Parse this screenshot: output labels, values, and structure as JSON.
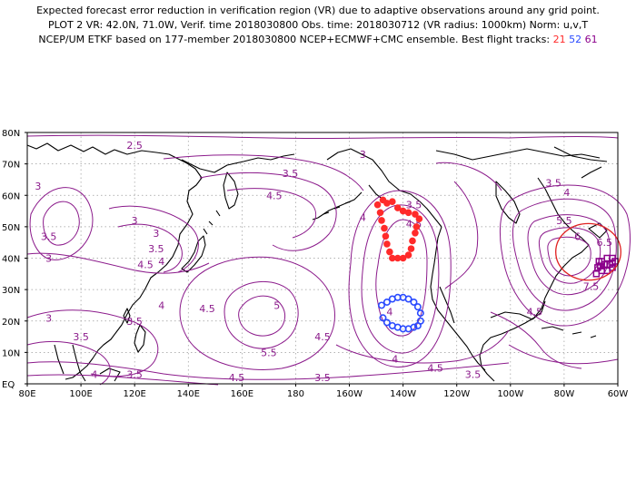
{
  "header": {
    "line1": "Expected forecast error reduction in verification region (VR) due to adaptive observations around any grid point.",
    "line2": "PLOT 2 VR: 42.0N, 71.0W, Verif. time 2018030800 Obs. time: 2018030712 (VR radius: 1000km) Norm: u,v,T",
    "line3": "NCEP/UM ETKF based on 177-member 2018030800 NCEP+ECMWF+CMC ensemble. Best flight tracks:",
    "tracks": [
      {
        "label": "21",
        "color": "#ff2a2a"
      },
      {
        "label": "52",
        "color": "#2a4bff"
      },
      {
        "label": "61",
        "color": "#8b008b"
      }
    ]
  },
  "map": {
    "lat_labels": [
      "80N",
      "70N",
      "60N",
      "50N",
      "40N",
      "30N",
      "20N",
      "10N",
      "EQ"
    ],
    "lon_labels": [
      "80E",
      "100E",
      "120E",
      "140E",
      "160E",
      "180",
      "160W",
      "140W",
      "120W",
      "100W",
      "80W",
      "60W"
    ],
    "contour_color": "#8b1a8b",
    "grid": true,
    "contour_labels": [
      {
        "text": "2.5",
        "lon": 120,
        "lat": 76
      },
      {
        "text": "3",
        "lon": 205,
        "lat": 73
      },
      {
        "text": "3.5",
        "lon": 178,
        "lat": 67
      },
      {
        "text": "4.5",
        "lon": 172,
        "lat": 60
      },
      {
        "text": "3",
        "lon": 84,
        "lat": 63
      },
      {
        "text": "3.5",
        "lon": 88,
        "lat": 47
      },
      {
        "text": "3",
        "lon": 88,
        "lat": 40
      },
      {
        "text": "3",
        "lon": 120,
        "lat": 52
      },
      {
        "text": "3",
        "lon": 128,
        "lat": 48
      },
      {
        "text": "3.5",
        "lon": 128,
        "lat": 43
      },
      {
        "text": "4.5",
        "lon": 124,
        "lat": 38
      },
      {
        "text": "4",
        "lon": 130,
        "lat": 39
      },
      {
        "text": "4",
        "lon": 130,
        "lat": 25
      },
      {
        "text": "3.5",
        "lon": 120,
        "lat": 20
      },
      {
        "text": "3",
        "lon": 88,
        "lat": 21
      },
      {
        "text": "3.5",
        "lon": 100,
        "lat": 15
      },
      {
        "text": "4.5",
        "lon": 147,
        "lat": 24
      },
      {
        "text": "5",
        "lon": 173,
        "lat": 25
      },
      {
        "text": "5.5",
        "lon": 170,
        "lat": 10
      },
      {
        "text": "4.5",
        "lon": 190,
        "lat": 15
      },
      {
        "text": "4.5",
        "lon": 158,
        "lat": 2
      },
      {
        "text": "3.5",
        "lon": 120,
        "lat": 3
      },
      {
        "text": "4",
        "lon": 105,
        "lat": 3
      },
      {
        "text": "3.5",
        "lon": 190,
        "lat": 2
      },
      {
        "text": "4",
        "lon": 205,
        "lat": 53
      },
      {
        "text": "3.5",
        "lon": 224,
        "lat": 57
      },
      {
        "text": "4.5",
        "lon": 224,
        "lat": 51
      },
      {
        "text": "4",
        "lon": 215,
        "lat": 23
      },
      {
        "text": "4",
        "lon": 217,
        "lat": 8
      },
      {
        "text": "4.5",
        "lon": 232,
        "lat": 5
      },
      {
        "text": "3.5",
        "lon": 246,
        "lat": 3
      },
      {
        "text": "3.5",
        "lon": 276,
        "lat": 64
      },
      {
        "text": "4",
        "lon": 281,
        "lat": 61
      },
      {
        "text": "5.5",
        "lon": 280,
        "lat": 52
      },
      {
        "text": "6",
        "lon": 285,
        "lat": 47
      },
      {
        "text": "6.5",
        "lon": 295,
        "lat": 45
      },
      {
        "text": "7.5",
        "lon": 290,
        "lat": 31
      },
      {
        "text": "4.5",
        "lon": 269,
        "lat": 23
      }
    ],
    "track_21": [
      [
        210.5,
        57
      ],
      [
        211.5,
        54.5
      ],
      [
        212,
        52
      ],
      [
        213,
        49.5
      ],
      [
        213.5,
        47
      ],
      [
        214,
        44.5
      ],
      [
        215,
        42
      ],
      [
        216,
        40
      ],
      [
        218,
        40
      ],
      [
        220,
        40
      ],
      [
        222,
        41
      ],
      [
        223,
        43
      ],
      [
        223.5,
        45.5
      ],
      [
        224.5,
        48
      ],
      [
        225,
        50
      ],
      [
        226,
        52.5
      ],
      [
        224.5,
        54
      ],
      [
        222,
        54.5
      ],
      [
        220,
        55
      ],
      [
        218,
        56
      ],
      [
        216,
        58
      ],
      [
        214,
        57.5
      ],
      [
        212.5,
        58.5
      ]
    ],
    "track_52": [
      [
        212,
        25
      ],
      [
        214,
        26
      ],
      [
        216,
        27
      ],
      [
        218,
        27.5
      ],
      [
        220,
        27.5
      ],
      [
        222,
        27
      ],
      [
        224,
        26
      ],
      [
        225.5,
        24.5
      ],
      [
        226.5,
        22.5
      ],
      [
        226.5,
        20
      ],
      [
        225.5,
        18.5
      ],
      [
        224,
        18
      ],
      [
        222,
        17.5
      ],
      [
        220,
        17.5
      ],
      [
        218,
        18
      ],
      [
        216,
        18.5
      ],
      [
        214,
        19.5
      ],
      [
        212.5,
        21
      ]
    ],
    "track_61": [
      [
        292,
        35
      ],
      [
        292.5,
        37
      ],
      [
        293,
        39
      ],
      [
        294,
        36
      ],
      [
        295,
        38
      ],
      [
        296,
        36
      ],
      [
        297,
        38
      ],
      [
        298,
        37
      ],
      [
        299,
        39
      ],
      [
        298,
        40
      ],
      [
        296,
        40
      ],
      [
        294,
        39
      ],
      [
        296,
        38
      ],
      [
        298,
        38.5
      ],
      [
        293.5,
        37.5
      ]
    ],
    "verification_region": {
      "center_lon": 289,
      "center_lat": 42,
      "radius_km": 1000
    }
  }
}
